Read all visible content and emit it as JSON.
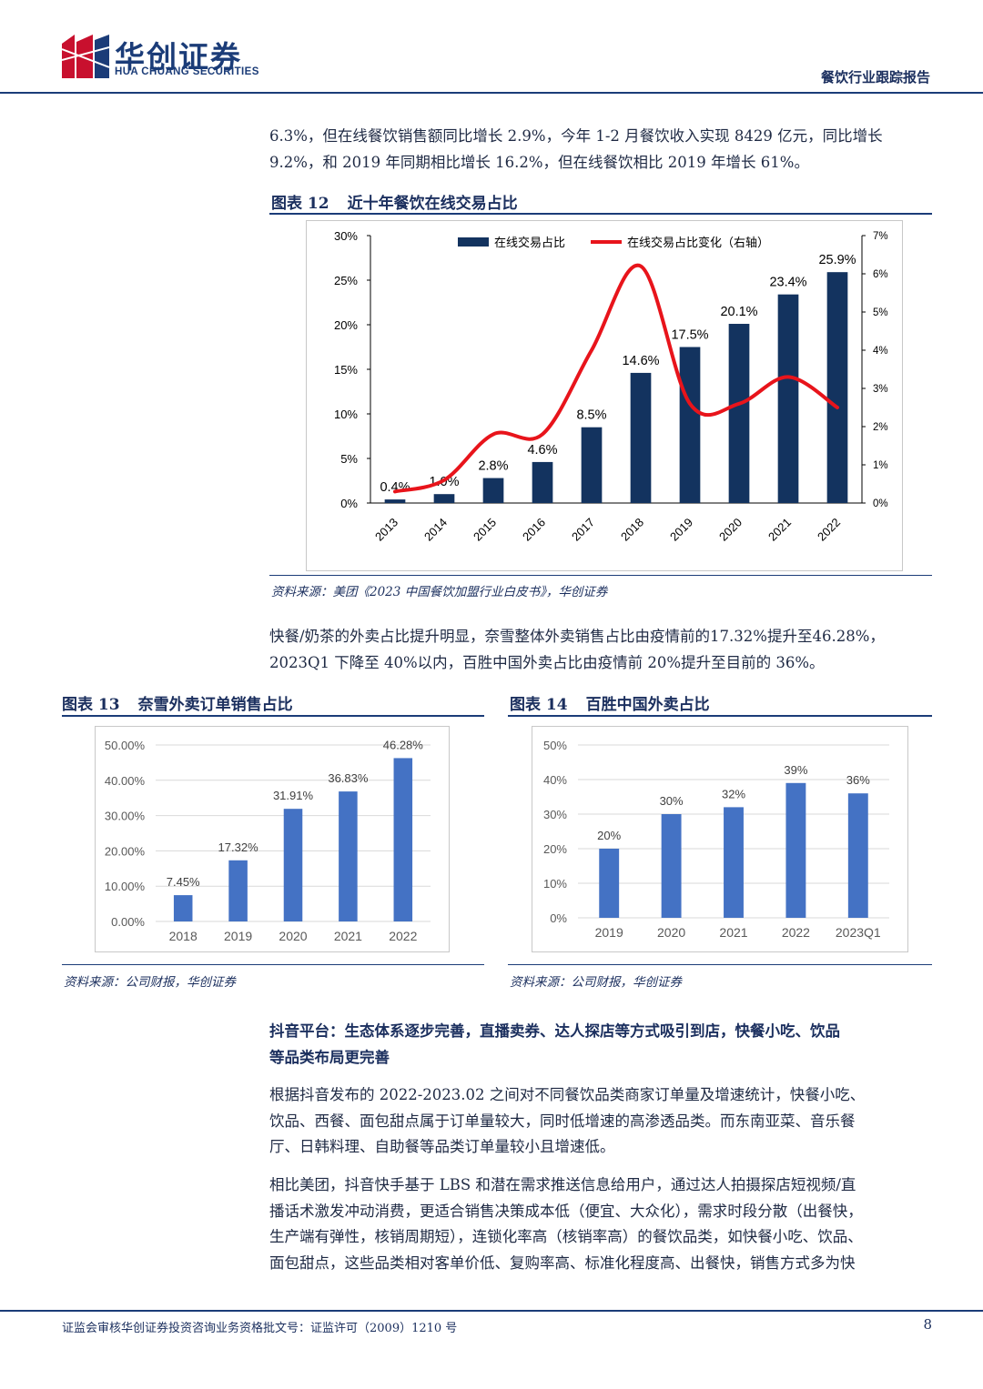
{
  "header": {
    "logo_cn": "华创证券",
    "logo_en": "HUA CHUANG SECURITIES",
    "report_type": "餐饮行业跟踪报告"
  },
  "para1": {
    "line1": "6.3%，但在线餐饮销售额同比增长 2.9%，今年 1-2 月餐饮收入实现 8429 亿元，同比增长",
    "line2": "9.2%，和 2019 年同期相比增长 16.2%，但在线餐饮相比 2019 年增长 61%。"
  },
  "fig12": {
    "label": "图表 12",
    "title": "近十年餐饮在线交易占比",
    "source": "资料来源：美团《2023 中国餐饮加盟行业白皮书》，华创证券"
  },
  "para2": {
    "line1": "快餐/奶茶的外卖占比提升明显，奈雪整体外卖销售占比由疫情前的17.32%提升至46.28%，",
    "line2": "2023Q1 下降至 40%以内，百胜中国外卖占比由疫情前 20%提升至目前的 36%。"
  },
  "fig13": {
    "label": "图表 13",
    "title": "奈雪外卖订单销售占比",
    "source": "资料来源：公司财报，华创证券"
  },
  "fig14": {
    "label": "图表 14",
    "title": "百胜中国外卖占比",
    "source": "资料来源：公司财报，华创证券"
  },
  "section": {
    "heading_line1": "抖音平台：生态体系逐步完善，直播卖券、达人探店等方式吸引到店，快餐小吃、饮品",
    "heading_line2": "等品类布局更完善",
    "p3_line1": "根据抖音发布的 2022-2023.02 之间对不同餐饮品类商家订单量及增速统计，快餐小吃、",
    "p3_line2": "饮品、西餐、面包甜点属于订单量较大，同时低增速的高渗透品类。而东南亚菜、音乐餐",
    "p3_line3": "厅、日韩料理、自助餐等品类订单量较小且增速低。",
    "p4_line1": "相比美团，抖音快手基于 LBS 和潜在需求推送信息给用户，通过达人拍摄探店短视频/直",
    "p4_line2": "播话术激发冲动消费，更适合销售决策成本低（便宜、大众化），需求时段分散（出餐快，",
    "p4_line3": "生产端有弹性，核销周期短），连锁化率高（核销率高）的餐饮品类，如快餐小吃、饮品、",
    "p4_line4": "面包甜点，这些品类相对客单价低、复购率高、标准化程度高、出餐快，销售方式多为快"
  },
  "footer": {
    "text": "证监会审核华创证券投资咨询业务资格批文号：证监许可（2009）1210 号",
    "page": "8"
  },
  "colors": {
    "navy": "#1b3c78",
    "bar_dark": "#13335f",
    "bar_blue": "#4472c4",
    "line_red": "#e8141b"
  },
  "chart_data": [
    {
      "type": "bar",
      "categories": [
        "2013",
        "2014",
        "2015",
        "2016",
        "2017",
        "2018",
        "2019",
        "2020",
        "2021",
        "2022"
      ],
      "series": [
        {
          "name": "在线交易占比",
          "axis": "left",
          "values": [
            0.4,
            1.0,
            2.8,
            4.6,
            8.5,
            14.6,
            17.5,
            20.1,
            23.4,
            25.9
          ],
          "labels": [
            "0.4%",
            "1.0%",
            "2.8%",
            "4.6%",
            "8.5%",
            "14.6%",
            "17.5%",
            "20.1%",
            "23.4%",
            "25.9%"
          ]
        },
        {
          "name": "在线交易占比变化（右轴）",
          "type": "line",
          "axis": "right",
          "values": [
            0.3,
            0.6,
            1.8,
            1.8,
            4.0,
            6.2,
            2.6,
            2.6,
            3.3,
            2.5
          ]
        }
      ],
      "ylim": [
        0,
        30
      ],
      "yticks": [
        "0%",
        "5%",
        "10%",
        "15%",
        "20%",
        "25%",
        "30%"
      ],
      "y2lim": [
        0,
        7
      ],
      "y2ticks": [
        "0%",
        "1%",
        "2%",
        "3%",
        "4%",
        "5%",
        "6%",
        "7%"
      ],
      "legend": "top"
    },
    {
      "type": "bar",
      "categories": [
        "2018",
        "2019",
        "2020",
        "2021",
        "2022"
      ],
      "values": [
        7.45,
        17.32,
        31.91,
        36.83,
        46.28
      ],
      "labels": [
        "7.45%",
        "17.32%",
        "31.91%",
        "36.83%",
        "46.28%"
      ],
      "ylim": [
        0,
        50
      ],
      "yticks": [
        "0.00%",
        "10.00%",
        "20.00%",
        "30.00%",
        "40.00%",
        "50.00%"
      ]
    },
    {
      "type": "bar",
      "categories": [
        "2019",
        "2020",
        "2021",
        "2022",
        "2023Q1"
      ],
      "values": [
        20,
        30,
        32,
        39,
        36
      ],
      "labels": [
        "20%",
        "30%",
        "32%",
        "39%",
        "36%"
      ],
      "ylim": [
        0,
        50
      ],
      "yticks": [
        "0%",
        "10%",
        "20%",
        "30%",
        "40%",
        "50%"
      ]
    }
  ]
}
